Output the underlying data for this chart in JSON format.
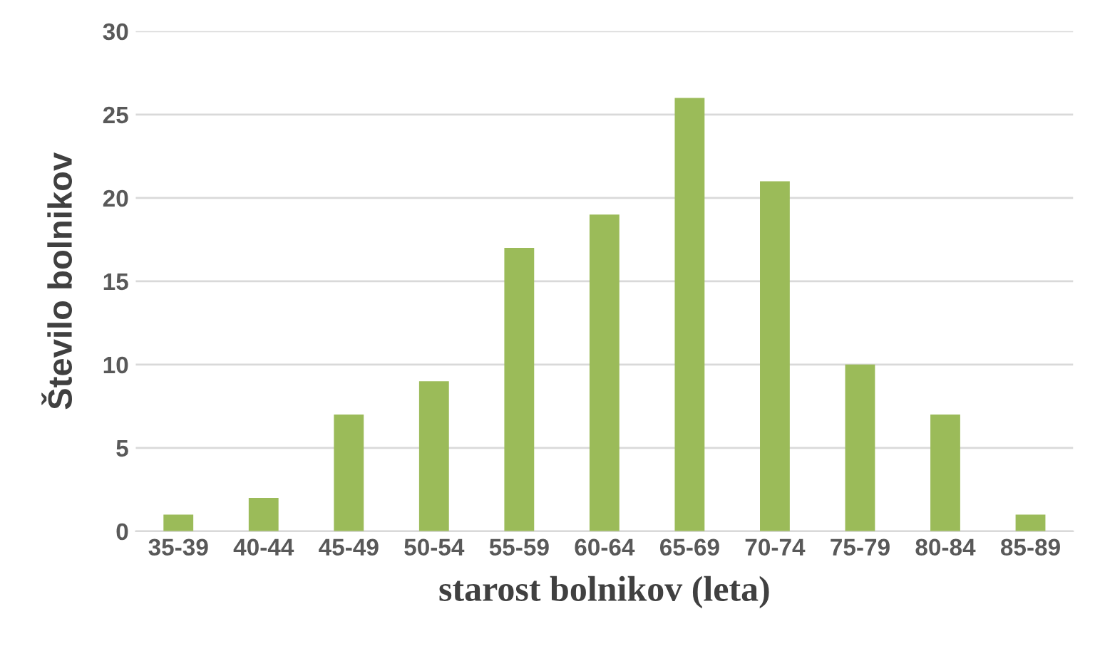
{
  "chart_data": {
    "type": "bar",
    "xlabel": "starost bolnikov (leta)",
    "ylabel": "Število bolnikov",
    "categories": [
      "35-39",
      "40-44",
      "45-49",
      "50-54",
      "55-59",
      "60-64",
      "65-69",
      "70-74",
      "75-79",
      "80-84",
      "85-89"
    ],
    "values": [
      1,
      2,
      7,
      9,
      17,
      19,
      26,
      21,
      10,
      7,
      1
    ],
    "color": "#9bbb59",
    "ylim": [
      0,
      30
    ],
    "yticks": [
      0,
      5,
      10,
      15,
      20,
      25,
      30
    ],
    "grid": "y",
    "legend": false
  }
}
